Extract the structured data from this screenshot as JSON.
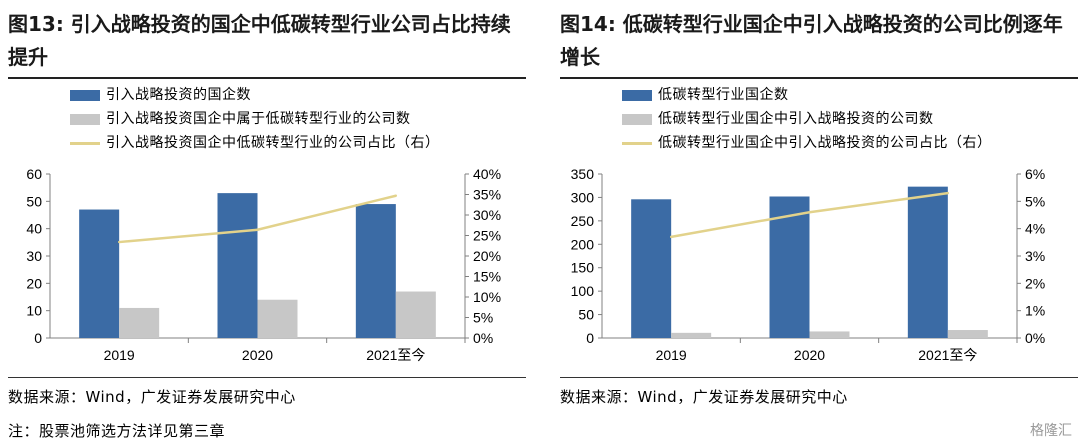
{
  "charts": [
    {
      "title": "图13:  引入战略投资的国企中低碳转型行业公司占比持续提升",
      "source": "数据来源：Wind，广发证券发展研究中心",
      "note": "注：股票池筛选方法详见第三章",
      "legend": [
        {
          "label": "引入战略投资的国企数",
          "kind": "bar",
          "color": "#3B6BA5"
        },
        {
          "label": "引入战略投资国企中属于低碳转型行业的公司数",
          "kind": "bar",
          "color": "#C7C7C7"
        },
        {
          "label": "引入战略投资国企中低碳转型行业的公司占比（右）",
          "kind": "line",
          "color": "#E2D28B"
        }
      ],
      "yticks": [
        "0",
        "10",
        "20",
        "30",
        "40",
        "50",
        "60"
      ],
      "y2ticks": [
        "0%",
        "5%",
        "10%",
        "15%",
        "20%",
        "25%",
        "30%",
        "35%",
        "40%"
      ]
    },
    {
      "title": "图14:  低碳转型行业国企中引入战略投资的公司比例逐年增长",
      "source": "数据来源：Wind，广发证券发展研究中心",
      "legend": [
        {
          "label": "低碳转型行业国企数",
          "kind": "bar",
          "color": "#3B6BA5"
        },
        {
          "label": "低碳转型行业国企中引入战略投资的公司数",
          "kind": "bar",
          "color": "#C7C7C7"
        },
        {
          "label": "低碳转型行业国企中引入战略投资的公司占比（右）",
          "kind": "line",
          "color": "#E2D28B"
        }
      ],
      "yticks": [
        "0",
        "50",
        "100",
        "150",
        "200",
        "250",
        "300",
        "350"
      ],
      "y2ticks": [
        "0%",
        "1%",
        "2%",
        "3%",
        "4%",
        "5%",
        "6%"
      ]
    }
  ],
  "watermark": "格隆汇",
  "chart_data": [
    {
      "type": "bar",
      "categories": [
        "2019",
        "2020",
        "2021至今"
      ],
      "series": [
        {
          "name": "引入战略投资的国企数",
          "type": "bar",
          "axis": "left",
          "values": [
            47,
            53,
            49
          ]
        },
        {
          "name": "引入战略投资国企中属于低碳转型行业的公司数",
          "type": "bar",
          "axis": "left",
          "values": [
            11,
            14,
            17
          ]
        },
        {
          "name": "引入战略投资国企中低碳转型行业的公司占比（右）",
          "type": "line",
          "axis": "right",
          "values": [
            0.234,
            0.264,
            0.347
          ]
        }
      ],
      "ylim": [
        0,
        60
      ],
      "y2lim": [
        0,
        0.4
      ],
      "legend_position": "top-left",
      "grid": false
    },
    {
      "type": "bar",
      "categories": [
        "2019",
        "2020",
        "2021至今"
      ],
      "series": [
        {
          "name": "低碳转型行业国企数",
          "type": "bar",
          "axis": "left",
          "values": [
            296,
            302,
            323
          ]
        },
        {
          "name": "低碳转型行业国企中引入战略投资的公司数",
          "type": "bar",
          "axis": "left",
          "values": [
            11,
            14,
            17
          ]
        },
        {
          "name": "低碳转型行业国企中引入战略投资的公司占比（右）",
          "type": "line",
          "axis": "right",
          "values": [
            0.037,
            0.046,
            0.053
          ]
        }
      ],
      "ylim": [
        0,
        350
      ],
      "y2lim": [
        0,
        0.06
      ],
      "legend_position": "top-left",
      "grid": false
    }
  ]
}
